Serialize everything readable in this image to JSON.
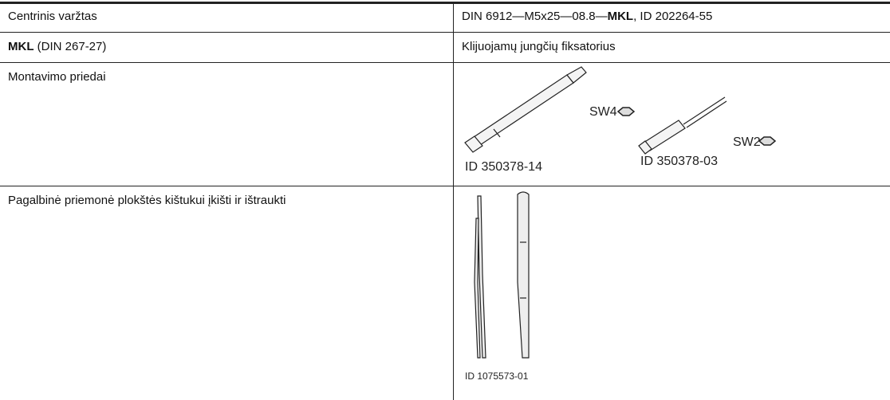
{
  "rows": [
    {
      "left": [
        "Centrinis varžtas"
      ],
      "right": [
        "DIN 6912—M5x25—08.8—",
        "MKL",
        ", ID 202264-55"
      ]
    },
    {
      "left": [
        "MKL",
        " (DIN 267-27)"
      ],
      "right": [
        "Klijuojamų jungčių fiksatorius"
      ]
    },
    {
      "left": [
        "Montavimo priedai"
      ],
      "tools": [
        {
          "size": "SW4",
          "id": "ID 350378-14"
        },
        {
          "size": "SW2",
          "id": "ID 350378-03"
        }
      ]
    },
    {
      "left": [
        "Pagalbinė priemonė plokštės kištukui įkišti ir ištraukti"
      ],
      "tool_id": "ID 1075573-01"
    }
  ]
}
